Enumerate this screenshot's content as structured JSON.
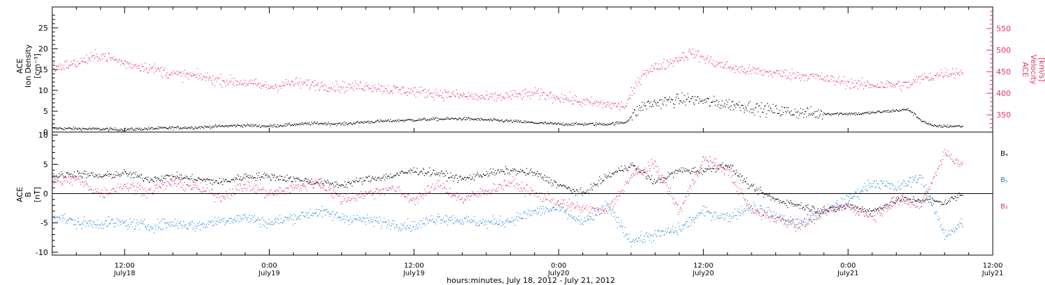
{
  "xlabel": "hours:minutes, July 18, 2012 - July 21, 2012",
  "colors": {
    "black": "#000000",
    "pink": "#e8335f",
    "blue": "#1f7fe0"
  },
  "panels": {
    "top": {
      "left_label_lines": [
        "ACE",
        "Ion Density",
        "[cm⁻³]"
      ],
      "right_label_lines": [
        "ACE",
        "Velocity",
        "[km/s]"
      ],
      "left_ticks": [
        "0",
        "5",
        "10",
        "15",
        "20",
        "25"
      ],
      "right_ticks": [
        "350",
        "400",
        "450",
        "500",
        "550"
      ]
    },
    "bottom": {
      "left_label_lines": [
        "ACE",
        "B",
        "[nT]"
      ],
      "left_ticks": [
        "-10",
        "-5",
        "0",
        "5",
        "10"
      ],
      "legend": [
        "Bₓ",
        "Bᵧ",
        "B₂"
      ]
    }
  },
  "x_ticks": [
    {
      "time": "12:00",
      "date": "July18"
    },
    {
      "time": "0:00",
      "date": "July19"
    },
    {
      "time": "12:00",
      "date": "July19"
    },
    {
      "time": "0:00",
      "date": "July20"
    },
    {
      "time": "12:00",
      "date": "July20"
    },
    {
      "time": "0:00",
      "date": "July21"
    },
    {
      "time": "12:00",
      "date": "July21"
    }
  ],
  "chart_data": [
    {
      "type": "scatter",
      "title": "",
      "xlabel": "hours:minutes, July 18, 2012 - July 21, 2012",
      "x_unit": "hours since 2012-07-18 00:00 UT",
      "xlim": [
        6,
        84
      ],
      "ylabel": "ACE Ion Density [cm⁻³]",
      "ylim": [
        0,
        30
      ],
      "y2label": "ACE Velocity [km/s]",
      "y2lim": [
        310,
        600
      ],
      "series": [
        {
          "name": "Ion Density",
          "axis": "left",
          "color": "#000000",
          "x": [
            6,
            8,
            10,
            12,
            14,
            16,
            18,
            20,
            22,
            24,
            26,
            28,
            30,
            32,
            34,
            36,
            38,
            40,
            42,
            44,
            46,
            48,
            50,
            52,
            53.5,
            55,
            57,
            59,
            61,
            63,
            65,
            67,
            69,
            71,
            73,
            75,
            77,
            78,
            79,
            80,
            81.5
          ],
          "y": [
            1.0,
            0.9,
            0.8,
            0.7,
            0.9,
            1.1,
            1.2,
            1.5,
            1.7,
            1.5,
            1.9,
            2.2,
            2.0,
            2.5,
            2.8,
            3.0,
            3.2,
            3.3,
            3.0,
            2.7,
            2.3,
            2.0,
            2.0,
            2.0,
            2.4,
            6.5,
            7.5,
            8.0,
            7.0,
            6.5,
            5.5,
            5.0,
            4.5,
            4.5,
            4.5,
            5.0,
            5.5,
            3.0,
            1.5,
            1.5,
            1.5
          ]
        },
        {
          "name": "Velocity",
          "axis": "right",
          "color": "#e8335f",
          "x": [
            6,
            8,
            10,
            12,
            14,
            16,
            18,
            20,
            22,
            24,
            26,
            28,
            30,
            32,
            34,
            36,
            38,
            40,
            42,
            44,
            46,
            48,
            50,
            52,
            53.5,
            55,
            57,
            59,
            61,
            63,
            65,
            67,
            69,
            71,
            73,
            75,
            77,
            78,
            79,
            80,
            81.5
          ],
          "y": [
            460,
            470,
            490,
            470,
            460,
            445,
            440,
            430,
            425,
            415,
            425,
            420,
            415,
            418,
            410,
            405,
            400,
            395,
            390,
            395,
            400,
            392,
            380,
            375,
            370,
            450,
            470,
            495,
            470,
            455,
            450,
            445,
            440,
            430,
            420,
            420,
            420,
            435,
            440,
            448,
            450
          ]
        }
      ]
    },
    {
      "type": "scatter",
      "title": "",
      "xlabel": "hours:minutes, July 18, 2012 - July 21, 2012",
      "x_unit": "hours since 2012-07-18 00:00 UT",
      "xlim": [
        6,
        84
      ],
      "ylabel": "ACE B [nT]",
      "ylim": [
        -10.5,
        10.5
      ],
      "series": [
        {
          "name": "Bₓ",
          "color": "#000000",
          "x": [
            6,
            8,
            10,
            12,
            14,
            16,
            18,
            20,
            22,
            24,
            26,
            28,
            30,
            32,
            34,
            36,
            38,
            40,
            42,
            44,
            46,
            48,
            50,
            52,
            54,
            56,
            58,
            60,
            62,
            64,
            66,
            68,
            70,
            72,
            74,
            76,
            78,
            80,
            81.5
          ],
          "y": [
            3.0,
            3.5,
            3.0,
            3.5,
            2.5,
            3.0,
            2.5,
            2.0,
            3.0,
            3.0,
            2.5,
            2.0,
            1.5,
            2.5,
            3.0,
            4.0,
            3.5,
            2.5,
            3.5,
            4.0,
            3.5,
            1.5,
            0.0,
            3.0,
            5.0,
            2.0,
            4.0,
            4.0,
            5.0,
            1.0,
            -1.0,
            -2.0,
            -3.0,
            -2.0,
            -3.0,
            -1.0,
            -1.0,
            -1.5,
            0.0
          ]
        },
        {
          "name": "Bᵧ",
          "color": "#1f7fe0",
          "x": [
            6,
            8,
            10,
            12,
            14,
            16,
            18,
            20,
            22,
            24,
            26,
            28,
            30,
            32,
            34,
            36,
            38,
            40,
            42,
            44,
            46,
            48,
            50,
            52,
            54,
            56,
            58,
            60,
            62,
            64,
            66,
            68,
            70,
            72,
            74,
            76,
            78,
            80,
            81.5
          ],
          "y": [
            -3.5,
            -5.0,
            -5.0,
            -5.0,
            -5.5,
            -5.0,
            -5.5,
            -4.5,
            -4.0,
            -5.0,
            -4.0,
            -3.0,
            -4.0,
            -4.5,
            -5.0,
            -5.5,
            -4.0,
            -4.5,
            -5.0,
            -4.5,
            -3.0,
            -2.5,
            -5.0,
            -2.0,
            -8.0,
            -7.0,
            -6.0,
            -3.0,
            -4.0,
            -2.0,
            -4.0,
            -5.0,
            -3.0,
            -1.0,
            2.0,
            1.0,
            3.0,
            -7.0,
            -5.0
          ]
        },
        {
          "name": "B₂",
          "color": "#e8335f",
          "x": [
            6,
            8,
            10,
            12,
            14,
            16,
            18,
            20,
            22,
            24,
            26,
            28,
            30,
            32,
            34,
            36,
            38,
            40,
            42,
            44,
            46,
            48,
            50,
            52,
            54,
            56,
            58,
            60,
            62,
            64,
            66,
            68,
            70,
            72,
            74,
            76,
            78,
            80,
            81.5
          ],
          "y": [
            2.0,
            2.5,
            0.0,
            1.5,
            0.5,
            2.0,
            1.0,
            -0.5,
            1.5,
            0.0,
            1.0,
            2.0,
            -1.0,
            0.0,
            1.0,
            -1.0,
            1.5,
            -1.0,
            0.5,
            2.0,
            0.0,
            -1.5,
            -2.5,
            -3.0,
            3.0,
            5.0,
            -3.0,
            6.0,
            4.0,
            -3.0,
            -4.0,
            -5.5,
            -3.0,
            -2.0,
            -4.0,
            -1.0,
            -2.0,
            7.0,
            5.0
          ]
        }
      ]
    }
  ]
}
